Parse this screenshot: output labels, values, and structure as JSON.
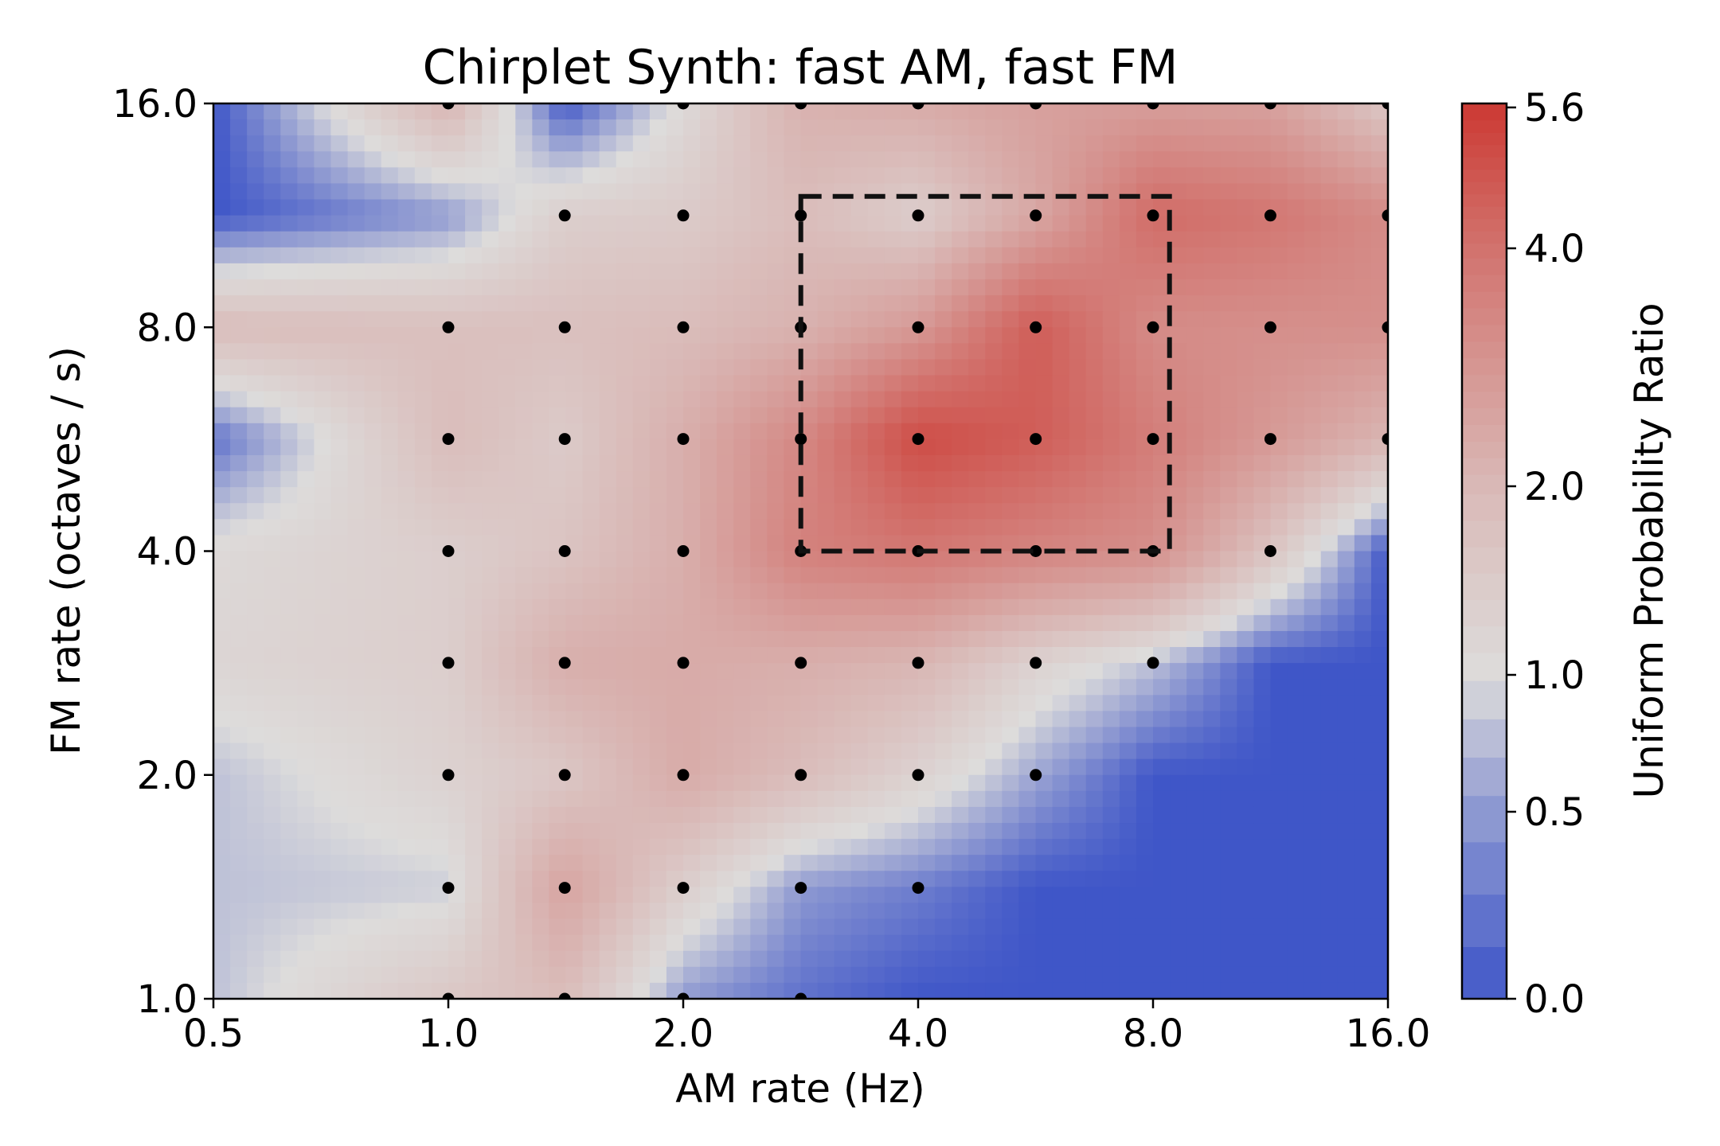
{
  "chart_data": {
    "type": "heatmap",
    "title": "Chirplet Synth: fast AM, fast FM",
    "xlabel": "AM rate (Hz)",
    "ylabel": "FM rate (octaves / s)",
    "xscale": "log2",
    "yscale": "log2",
    "xlim": [
      0.5,
      16.0
    ],
    "ylim": [
      1.0,
      16.0
    ],
    "xticks": [
      "0.5",
      "1.0",
      "2.0",
      "4.0",
      "8.0",
      "16.0"
    ],
    "yticks": [
      "1.0",
      "2.0",
      "4.0",
      "8.0",
      "16.0"
    ],
    "colorbar": {
      "label": "Uniform Probability Ratio",
      "colormap": "coolwarm",
      "ticks": [
        "0.0",
        "0.5",
        "1.0",
        "2.0",
        "4.0",
        "5.6"
      ],
      "range": [
        0.0,
        5.6
      ],
      "low_color": "#3f56c8",
      "mid_color": "#dddcdb",
      "high_color": "#cc3b34"
    },
    "grid_x": [
      0.5,
      1.0,
      1.41,
      2.0,
      2.83,
      4.0,
      5.66,
      8.0,
      11.31,
      16.0
    ],
    "grid_y": [
      1.0,
      1.41,
      2.0,
      2.83,
      4.0,
      5.66,
      8.0,
      11.31,
      16.0
    ],
    "z": [
      [
        0.8,
        1.6,
        1.9,
        0.5,
        0.2,
        0.0,
        0.0,
        0.0,
        0.0,
        0.0
      ],
      [
        0.8,
        0.9,
        2.6,
        1.4,
        0.5,
        0.3,
        0.0,
        0.0,
        0.0,
        0.0
      ],
      [
        0.8,
        1.3,
        1.6,
        2.4,
        1.9,
        1.3,
        0.6,
        0.0,
        0.0,
        0.0
      ],
      [
        1.2,
        1.4,
        2.3,
        2.4,
        2.3,
        2.1,
        1.3,
        0.8,
        0.0,
        0.0
      ],
      [
        1.1,
        1.4,
        1.7,
        2.3,
        3.6,
        3.9,
        3.5,
        3.2,
        1.7,
        0.0
      ],
      [
        0.2,
        1.9,
        1.5,
        2.3,
        3.4,
        5.1,
        4.6,
        3.7,
        2.9,
        2.1
      ],
      [
        1.9,
        1.8,
        1.8,
        1.9,
        2.2,
        2.9,
        4.6,
        3.3,
        3.2,
        3.2
      ],
      [
        0.0,
        0.5,
        1.4,
        1.5,
        1.9,
        1.4,
        2.5,
        4.2,
        3.9,
        3.3
      ],
      [
        0.0,
        2.1,
        0.0,
        1.1,
        2.2,
        2.4,
        2.7,
        2.8,
        2.7,
        1.6
      ]
    ],
    "sample_points": [
      [
        1.0,
        1.0
      ],
      [
        1.41,
        1.0
      ],
      [
        2.0,
        1.0
      ],
      [
        2.83,
        1.0
      ],
      [
        1.0,
        1.41
      ],
      [
        1.41,
        1.41
      ],
      [
        2.0,
        1.41
      ],
      [
        2.83,
        1.41
      ],
      [
        4.0,
        1.41
      ],
      [
        1.0,
        2.0
      ],
      [
        1.41,
        2.0
      ],
      [
        2.0,
        2.0
      ],
      [
        2.83,
        2.0
      ],
      [
        4.0,
        2.0
      ],
      [
        5.66,
        2.0
      ],
      [
        1.0,
        2.83
      ],
      [
        1.41,
        2.83
      ],
      [
        2.0,
        2.83
      ],
      [
        2.83,
        2.83
      ],
      [
        4.0,
        2.83
      ],
      [
        5.66,
        2.83
      ],
      [
        8.0,
        2.83
      ],
      [
        1.0,
        4.0
      ],
      [
        1.41,
        4.0
      ],
      [
        2.0,
        4.0
      ],
      [
        2.83,
        4.0
      ],
      [
        4.0,
        4.0
      ],
      [
        5.66,
        4.0
      ],
      [
        8.0,
        4.0
      ],
      [
        11.31,
        4.0
      ],
      [
        1.0,
        5.66
      ],
      [
        1.41,
        5.66
      ],
      [
        2.0,
        5.66
      ],
      [
        2.83,
        5.66
      ],
      [
        4.0,
        5.66
      ],
      [
        5.66,
        5.66
      ],
      [
        8.0,
        5.66
      ],
      [
        11.31,
        5.66
      ],
      [
        16.0,
        5.66
      ],
      [
        1.0,
        8.0
      ],
      [
        1.41,
        8.0
      ],
      [
        2.0,
        8.0
      ],
      [
        2.83,
        8.0
      ],
      [
        4.0,
        8.0
      ],
      [
        5.66,
        8.0
      ],
      [
        8.0,
        8.0
      ],
      [
        11.31,
        8.0
      ],
      [
        16.0,
        8.0
      ],
      [
        1.41,
        11.31
      ],
      [
        2.0,
        11.31
      ],
      [
        2.83,
        11.31
      ],
      [
        4.0,
        11.31
      ],
      [
        5.66,
        11.31
      ],
      [
        8.0,
        11.31
      ],
      [
        11.31,
        11.31
      ],
      [
        16.0,
        11.31
      ],
      [
        1.0,
        16.0
      ],
      [
        2.0,
        16.0
      ],
      [
        2.83,
        16.0
      ],
      [
        4.0,
        16.0
      ],
      [
        5.66,
        16.0
      ],
      [
        8.0,
        16.0
      ],
      [
        11.31,
        16.0
      ],
      [
        16.0,
        16.0
      ]
    ],
    "highlight_box": {
      "x": [
        2.83,
        8.4
      ],
      "y": [
        4.0,
        12.0
      ],
      "style": "dashed"
    },
    "grid": false
  }
}
